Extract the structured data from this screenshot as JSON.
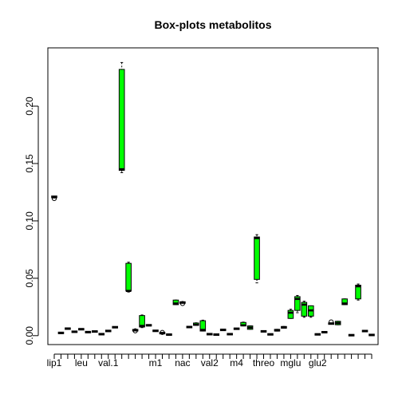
{
  "chart_data": {
    "type": "box",
    "title": "Box-plots metabolitos",
    "xlabel": "",
    "ylabel": "",
    "ylim": [
      -0.005,
      0.248
    ],
    "yticks": [
      "0.00",
      "0.05",
      "0.10",
      "0.15",
      "0.20"
    ],
    "ytick_values": [
      0.0,
      0.05,
      0.1,
      0.15,
      0.2
    ],
    "grid": false,
    "legend": "none",
    "colors": {
      "highlight_box": "#00ff00",
      "box": "#ffffff",
      "line": "#000000"
    },
    "x_labels": [
      {
        "pos": 1,
        "text": "lip1"
      },
      {
        "pos": 5,
        "text": "leu"
      },
      {
        "pos": 9,
        "text": "val.1"
      },
      {
        "pos": 16,
        "text": "m1"
      },
      {
        "pos": 20,
        "text": "nac"
      },
      {
        "pos": 24,
        "text": "val2"
      },
      {
        "pos": 28,
        "text": "m4"
      },
      {
        "pos": 32,
        "text": "threo"
      },
      {
        "pos": 36,
        "text": "mglu"
      },
      {
        "pos": 40,
        "text": "glu2"
      }
    ],
    "boxes": [
      {
        "pos": 1,
        "min": 0.1205,
        "q1": 0.1205,
        "median": 0.1205,
        "q3": 0.1215,
        "max": 0.1215,
        "green": false,
        "outliers": [
          0.1195
        ]
      },
      {
        "pos": 2,
        "min": 0.0023,
        "q1": 0.0023,
        "median": 0.0023,
        "q3": 0.0025,
        "max": 0.0025,
        "green": false,
        "outliers": []
      },
      {
        "pos": 3,
        "min": 0.006,
        "q1": 0.006,
        "median": 0.0061,
        "q3": 0.0062,
        "max": 0.0062,
        "green": false,
        "outliers": []
      },
      {
        "pos": 4,
        "min": 0.0033,
        "q1": 0.0033,
        "median": 0.0034,
        "q3": 0.0035,
        "max": 0.0035,
        "green": false,
        "outliers": []
      },
      {
        "pos": 5,
        "min": 0.0055,
        "q1": 0.0055,
        "median": 0.0056,
        "q3": 0.0057,
        "max": 0.0057,
        "green": false,
        "outliers": []
      },
      {
        "pos": 6,
        "min": 0.003,
        "q1": 0.003,
        "median": 0.0031,
        "q3": 0.0032,
        "max": 0.0032,
        "green": false,
        "outliers": []
      },
      {
        "pos": 7,
        "min": 0.0035,
        "q1": 0.0035,
        "median": 0.0036,
        "q3": 0.0037,
        "max": 0.0037,
        "green": false,
        "outliers": []
      },
      {
        "pos": 8,
        "min": 0.0012,
        "q1": 0.0012,
        "median": 0.0013,
        "q3": 0.0014,
        "max": 0.0014,
        "green": false,
        "outliers": []
      },
      {
        "pos": 9,
        "min": 0.004,
        "q1": 0.004,
        "median": 0.0041,
        "q3": 0.0042,
        "max": 0.0042,
        "green": false,
        "outliers": []
      },
      {
        "pos": 10,
        "min": 0.0072,
        "q1": 0.0072,
        "median": 0.0073,
        "q3": 0.0075,
        "max": 0.0075,
        "green": false,
        "outliers": []
      },
      {
        "pos": 11,
        "min": 0.142,
        "q1": 0.144,
        "median": 0.145,
        "q3": 0.232,
        "max": 0.238,
        "green": true,
        "outliers": []
      },
      {
        "pos": 12,
        "min": 0.038,
        "q1": 0.039,
        "median": 0.039,
        "q3": 0.063,
        "max": 0.064,
        "green": true,
        "outliers": []
      },
      {
        "pos": 13,
        "min": 0.0045,
        "q1": 0.0045,
        "median": 0.0048,
        "q3": 0.005,
        "max": 0.005,
        "green": false,
        "outliers": [
          0.0042
        ]
      },
      {
        "pos": 14,
        "min": 0.007,
        "q1": 0.0075,
        "median": 0.0085,
        "q3": 0.0175,
        "max": 0.018,
        "green": true,
        "outliers": []
      },
      {
        "pos": 15,
        "min": 0.0088,
        "q1": 0.0088,
        "median": 0.009,
        "q3": 0.0093,
        "max": 0.0093,
        "green": false,
        "outliers": []
      },
      {
        "pos": 16,
        "min": 0.004,
        "q1": 0.004,
        "median": 0.0042,
        "q3": 0.0044,
        "max": 0.0044,
        "green": false,
        "outliers": []
      },
      {
        "pos": 17,
        "min": 0.002,
        "q1": 0.002,
        "median": 0.0022,
        "q3": 0.0024,
        "max": 0.0024,
        "green": false,
        "outliers": [
          0.0028
        ]
      },
      {
        "pos": 18,
        "min": 0.0008,
        "q1": 0.0008,
        "median": 0.0009,
        "q3": 0.001,
        "max": 0.001,
        "green": false,
        "outliers": []
      },
      {
        "pos": 19,
        "min": 0.027,
        "q1": 0.027,
        "median": 0.028,
        "q3": 0.031,
        "max": 0.031,
        "green": true,
        "outliers": []
      },
      {
        "pos": 20,
        "min": 0.0285,
        "q1": 0.0285,
        "median": 0.0288,
        "q3": 0.0292,
        "max": 0.0292,
        "green": false,
        "outliers": [
          0.028
        ]
      },
      {
        "pos": 21,
        "min": 0.0073,
        "q1": 0.0073,
        "median": 0.0075,
        "q3": 0.0077,
        "max": 0.0077,
        "green": false,
        "outliers": []
      },
      {
        "pos": 22,
        "min": 0.009,
        "q1": 0.009,
        "median": 0.0095,
        "q3": 0.011,
        "max": 0.0112,
        "green": true,
        "outliers": []
      },
      {
        "pos": 23,
        "min": 0.004,
        "q1": 0.004,
        "median": 0.005,
        "q3": 0.013,
        "max": 0.0135,
        "green": true,
        "outliers": []
      },
      {
        "pos": 24,
        "min": 0.0012,
        "q1": 0.0012,
        "median": 0.0013,
        "q3": 0.0014,
        "max": 0.0014,
        "green": false,
        "outliers": []
      },
      {
        "pos": 25,
        "min": 0.0008,
        "q1": 0.0008,
        "median": 0.0009,
        "q3": 0.001,
        "max": 0.001,
        "green": false,
        "outliers": []
      },
      {
        "pos": 26,
        "min": 0.0048,
        "q1": 0.0048,
        "median": 0.005,
        "q3": 0.0052,
        "max": 0.0052,
        "green": false,
        "outliers": []
      },
      {
        "pos": 27,
        "min": 0.0012,
        "q1": 0.0012,
        "median": 0.0013,
        "q3": 0.0014,
        "max": 0.0014,
        "green": false,
        "outliers": []
      },
      {
        "pos": 28,
        "min": 0.0058,
        "q1": 0.0058,
        "median": 0.006,
        "q3": 0.0062,
        "max": 0.0062,
        "green": false,
        "outliers": []
      },
      {
        "pos": 29,
        "min": 0.0085,
        "q1": 0.0085,
        "median": 0.009,
        "q3": 0.0115,
        "max": 0.0118,
        "green": true,
        "outliers": []
      },
      {
        "pos": 30,
        "min": 0.0055,
        "q1": 0.0055,
        "median": 0.007,
        "q3": 0.0085,
        "max": 0.0085,
        "green": true,
        "outliers": []
      },
      {
        "pos": 31,
        "min": 0.046,
        "q1": 0.049,
        "median": 0.085,
        "q3": 0.086,
        "max": 0.088,
        "green": true,
        "outliers": []
      },
      {
        "pos": 32,
        "min": 0.0035,
        "q1": 0.0035,
        "median": 0.0037,
        "q3": 0.004,
        "max": 0.004,
        "green": false,
        "outliers": []
      },
      {
        "pos": 33,
        "min": 0.001,
        "q1": 0.001,
        "median": 0.0011,
        "q3": 0.0012,
        "max": 0.0012,
        "green": false,
        "outliers": []
      },
      {
        "pos": 34,
        "min": 0.004,
        "q1": 0.004,
        "median": 0.0045,
        "q3": 0.0055,
        "max": 0.0055,
        "green": true,
        "outliers": []
      },
      {
        "pos": 35,
        "min": 0.0065,
        "q1": 0.0065,
        "median": 0.007,
        "q3": 0.008,
        "max": 0.008,
        "green": true,
        "outliers": []
      },
      {
        "pos": 36,
        "min": 0.015,
        "q1": 0.015,
        "median": 0.02,
        "q3": 0.022,
        "max": 0.023,
        "green": true,
        "outliers": []
      },
      {
        "pos": 37,
        "min": 0.02,
        "q1": 0.022,
        "median": 0.032,
        "q3": 0.034,
        "max": 0.035,
        "green": true,
        "outliers": []
      },
      {
        "pos": 38,
        "min": 0.016,
        "q1": 0.017,
        "median": 0.027,
        "q3": 0.029,
        "max": 0.03,
        "green": true,
        "outliers": []
      },
      {
        "pos": 39,
        "min": 0.016,
        "q1": 0.017,
        "median": 0.022,
        "q3": 0.026,
        "max": 0.026,
        "green": true,
        "outliers": []
      },
      {
        "pos": 40,
        "min": 0.001,
        "q1": 0.001,
        "median": 0.0011,
        "q3": 0.0012,
        "max": 0.0012,
        "green": false,
        "outliers": []
      },
      {
        "pos": 41,
        "min": 0.0028,
        "q1": 0.0028,
        "median": 0.003,
        "q3": 0.0032,
        "max": 0.0032,
        "green": false,
        "outliers": []
      },
      {
        "pos": 42,
        "min": 0.01,
        "q1": 0.01,
        "median": 0.0105,
        "q3": 0.011,
        "max": 0.011,
        "green": false,
        "outliers": [
          0.012
        ]
      },
      {
        "pos": 43,
        "min": 0.0095,
        "q1": 0.0095,
        "median": 0.011,
        "q3": 0.0125,
        "max": 0.0125,
        "green": true,
        "outliers": []
      },
      {
        "pos": 44,
        "min": 0.027,
        "q1": 0.027,
        "median": 0.028,
        "q3": 0.032,
        "max": 0.032,
        "green": true,
        "outliers": []
      },
      {
        "pos": 45,
        "min": 0.0003,
        "q1": 0.0003,
        "median": 0.0004,
        "q3": 0.0005,
        "max": 0.0005,
        "green": false,
        "outliers": []
      },
      {
        "pos": 46,
        "min": 0.031,
        "q1": 0.032,
        "median": 0.043,
        "q3": 0.044,
        "max": 0.045,
        "green": true,
        "outliers": []
      },
      {
        "pos": 47,
        "min": 0.0038,
        "q1": 0.0038,
        "median": 0.004,
        "q3": 0.0042,
        "max": 0.0042,
        "green": false,
        "outliers": []
      },
      {
        "pos": 48,
        "min": 0.0005,
        "q1": 0.0005,
        "median": 0.0006,
        "q3": 0.0007,
        "max": 0.0007,
        "green": false,
        "outliers": []
      }
    ]
  }
}
